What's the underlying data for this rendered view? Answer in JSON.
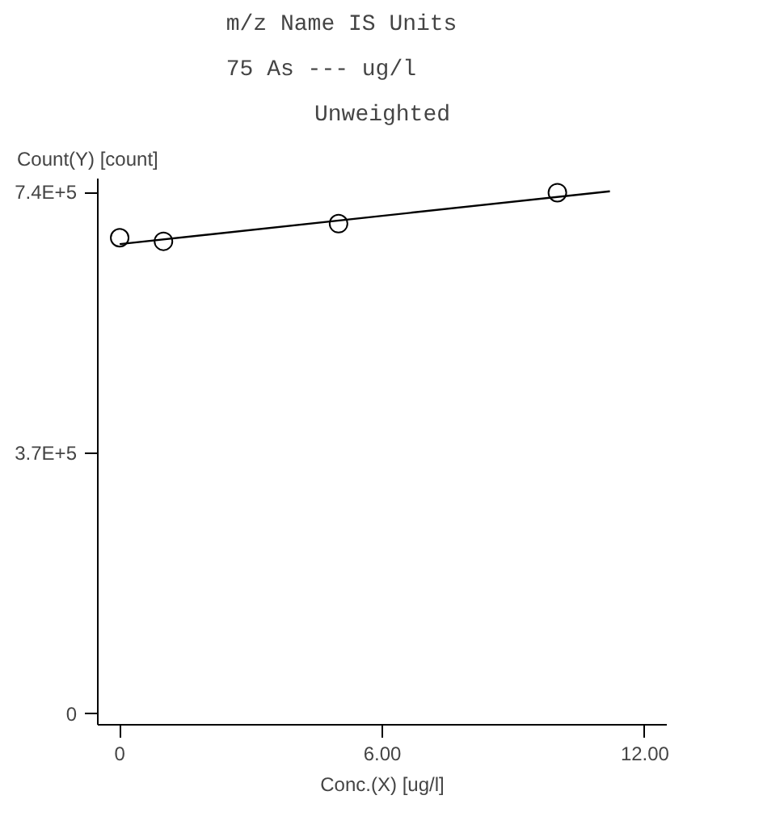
{
  "chart_data": {
    "type": "scatter",
    "title": "m/z      Name  IS Units",
    "subtitle": "75          As --- ug/l",
    "annotations": [
      "Unweighted"
    ],
    "xlabel": "Conc.(X) [ug/l]",
    "ylabel": "Count(Y) [count]",
    "series": [
      {
        "color": "#000000",
        "marker": "circle",
        "x": [
          0,
          1,
          5,
          10
        ],
        "values": [
          676000,
          671000,
          696000,
          740000
        ]
      },
      {
        "type": "line",
        "color": "#000000",
        "marker": "none",
        "x": [
          0,
          11.2
        ],
        "values": [
          667000,
          742000
        ]
      }
    ],
    "xlim": [
      -0.5,
      12.5
    ],
    "ylim": [
      -15000,
      760000
    ],
    "xticks": [
      0,
      {
        "value": 6,
        "label": "6.00"
      },
      {
        "value": 12,
        "label": "12.00"
      }
    ],
    "yticks": [
      0,
      {
        "value": 370000,
        "label": "3.7E+5"
      },
      {
        "value": 740000,
        "label": "7.4E+5"
      }
    ],
    "grid": false
  }
}
